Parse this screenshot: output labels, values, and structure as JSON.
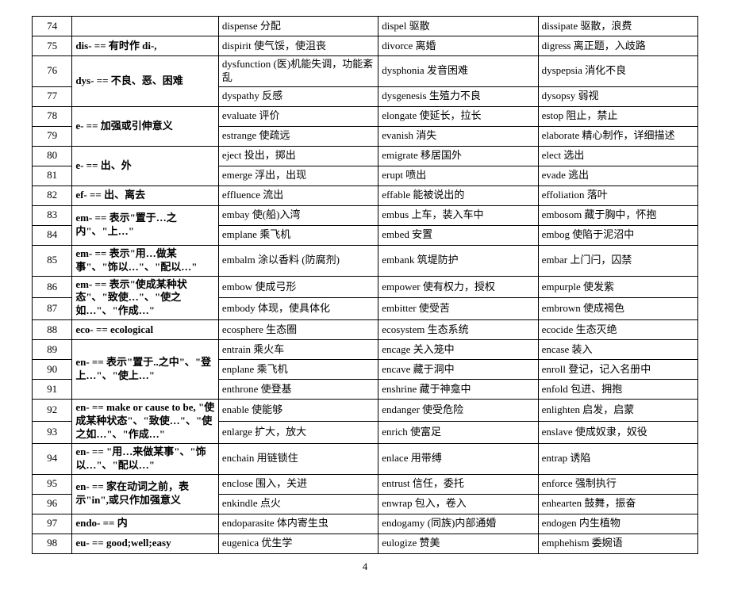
{
  "page_number": "4",
  "rows": [
    {
      "num": "74",
      "prefix": "",
      "span": 1,
      "ex1": "dispense 分配",
      "ex2": "dispel 驱散",
      "ex3": "dissipate 驱散，浪费"
    },
    {
      "num": "75",
      "prefix": "dis- == 有时作 di-,",
      "span": 1,
      "ex1": "dispirit 使气馁，使沮丧",
      "ex2": "divorce 离婚",
      "ex3": "digress 离正题，入歧路"
    },
    {
      "num": "76",
      "prefix": "dys- == 不良、恶、困难",
      "span": 2,
      "ex1": "dysfunction (医)机能失调，功能紊乱",
      "ex2": "dysphonia 发音困难",
      "ex3": "dyspepsia 消化不良"
    },
    {
      "num": "77",
      "prefix": "",
      "span": 0,
      "ex1": "dyspathy 反感",
      "ex2": "dysgenesis 生殖力不良",
      "ex3": "dysopsy 弱视"
    },
    {
      "num": "78",
      "prefix": "e- == 加强或引伸意义",
      "span": 2,
      "ex1": "evaluate 评价",
      "ex2": "elongate 使延长，拉长",
      "ex3": "estop 阻止，禁止"
    },
    {
      "num": "79",
      "prefix": "",
      "span": 0,
      "ex1": "estrange 使疏远",
      "ex2": "evanish 消失",
      "ex3": "elaborate 精心制作，详细描述"
    },
    {
      "num": "80",
      "prefix": "e- == 出、外",
      "span": 2,
      "ex1": "eject 投出，掷出",
      "ex2": "emigrate 移居国外",
      "ex3": "elect 选出"
    },
    {
      "num": "81",
      "prefix": "",
      "span": 0,
      "ex1": "emerge 浮出，出现",
      "ex2": "erupt 喷出",
      "ex3": "evade 逃出"
    },
    {
      "num": "82",
      "prefix": "ef- == 出、离去",
      "span": 1,
      "ex1": "effluence 流出",
      "ex2": "effable 能被说出的",
      "ex3": "effoliation 落叶"
    },
    {
      "num": "83",
      "prefix": "em- == 表示\"置于…之内\"、\"上…\"",
      "span": 2,
      "ex1": "embay 使(船)入湾",
      "ex2": "embus 上车，装入车中",
      "ex3": "embosom 藏于胸中，怀抱"
    },
    {
      "num": "84",
      "prefix": "",
      "span": 0,
      "ex1": "emplane 乘飞机",
      "ex2": "embed 安置",
      "ex3": "embog 使陷于泥沼中"
    },
    {
      "num": "85",
      "prefix": "em- == 表示\"用…做某事\"、\"饰以…\"、\"配以…\"",
      "span": 1,
      "ex1": "embalm 涂以香料 (防腐剂)",
      "ex2": "embank 筑堤防护",
      "ex3": "embar 上门闩，囚禁"
    },
    {
      "num": "86",
      "prefix": "em- == 表示\"使成某种状态\"、\"致使…\"、\"使之如…\"、\"作成…\"",
      "span": 2,
      "ex1": "embow 使成弓形",
      "ex2": "empower 使有权力，授权",
      "ex3": "empurple 使发紫"
    },
    {
      "num": "87",
      "prefix": "",
      "span": 0,
      "ex1": "embody 体现，使具体化",
      "ex2": "embitter 使受苦",
      "ex3": "embrown 使成褐色"
    },
    {
      "num": "88",
      "prefix": "eco- == ecological",
      "span": 1,
      "ex1": "ecosphere 生态圈",
      "ex2": "ecosystem 生态系统",
      "ex3": "ecocide 生态灭绝"
    },
    {
      "num": "89",
      "prefix": "en- == 表示\"置于..之中\"、\"登上…\"、\"使上…\"",
      "span": 3,
      "ex1": "entrain 乘火车",
      "ex2": "encage 关入笼中",
      "ex3": "encase 装入"
    },
    {
      "num": "90",
      "prefix": "",
      "span": 0,
      "ex1": "enplane 乘飞机",
      "ex2": "encave 藏于洞中",
      "ex3": "enroll 登记，记入名册中"
    },
    {
      "num": "91",
      "prefix": "",
      "span": 0,
      "ex1": "enthrone 使登基",
      "ex2": "enshrine 藏于神龛中",
      "ex3": "enfold 包进、拥抱"
    },
    {
      "num": "92",
      "prefix": "en- == make or cause to be, \"使成某种状态\"、\"致使…\"、\"使之如…\"、\"作成…\"",
      "span": 2,
      "ex1": "enable 使能够",
      "ex2": "endanger 使受危险",
      "ex3": "enlighten 启发，启蒙"
    },
    {
      "num": "93",
      "prefix": "",
      "span": 0,
      "ex1": "enlarge 扩大，放大",
      "ex2": "enrich 使富足",
      "ex3": "enslave 使成奴隶，奴役"
    },
    {
      "num": "94",
      "prefix": "en- == \"用…来做某事\"、\"饰以…\"、\"配以…\"",
      "span": 1,
      "ex1": "enchain 用链锁住",
      "ex2": "enlace 用带缚",
      "ex3": "entrap 诱陷"
    },
    {
      "num": "95",
      "prefix": "en- == 家在动词之前，表示\"in\",或只作加强意义",
      "span": 2,
      "ex1": "enclose 围入，关进",
      "ex2": "entrust 信任，委托",
      "ex3": "enforce 强制执行"
    },
    {
      "num": "96",
      "prefix": "",
      "span": 0,
      "ex1": "enkindle 点火",
      "ex2": "enwrap 包入，卷入",
      "ex3": "enhearten 鼓舞，振奋"
    },
    {
      "num": "97",
      "prefix": "endo- == 内",
      "span": 1,
      "ex1": "endoparasite 体内寄生虫",
      "ex2": "endogamy (同族)内部通婚",
      "ex3": "endogen 内生植物"
    },
    {
      "num": "98",
      "prefix": "eu- == good;well;easy",
      "span": 1,
      "ex1": "eugenica 优生学",
      "ex2": "eulogize 赞美",
      "ex3": "emphehism 委婉语"
    }
  ]
}
